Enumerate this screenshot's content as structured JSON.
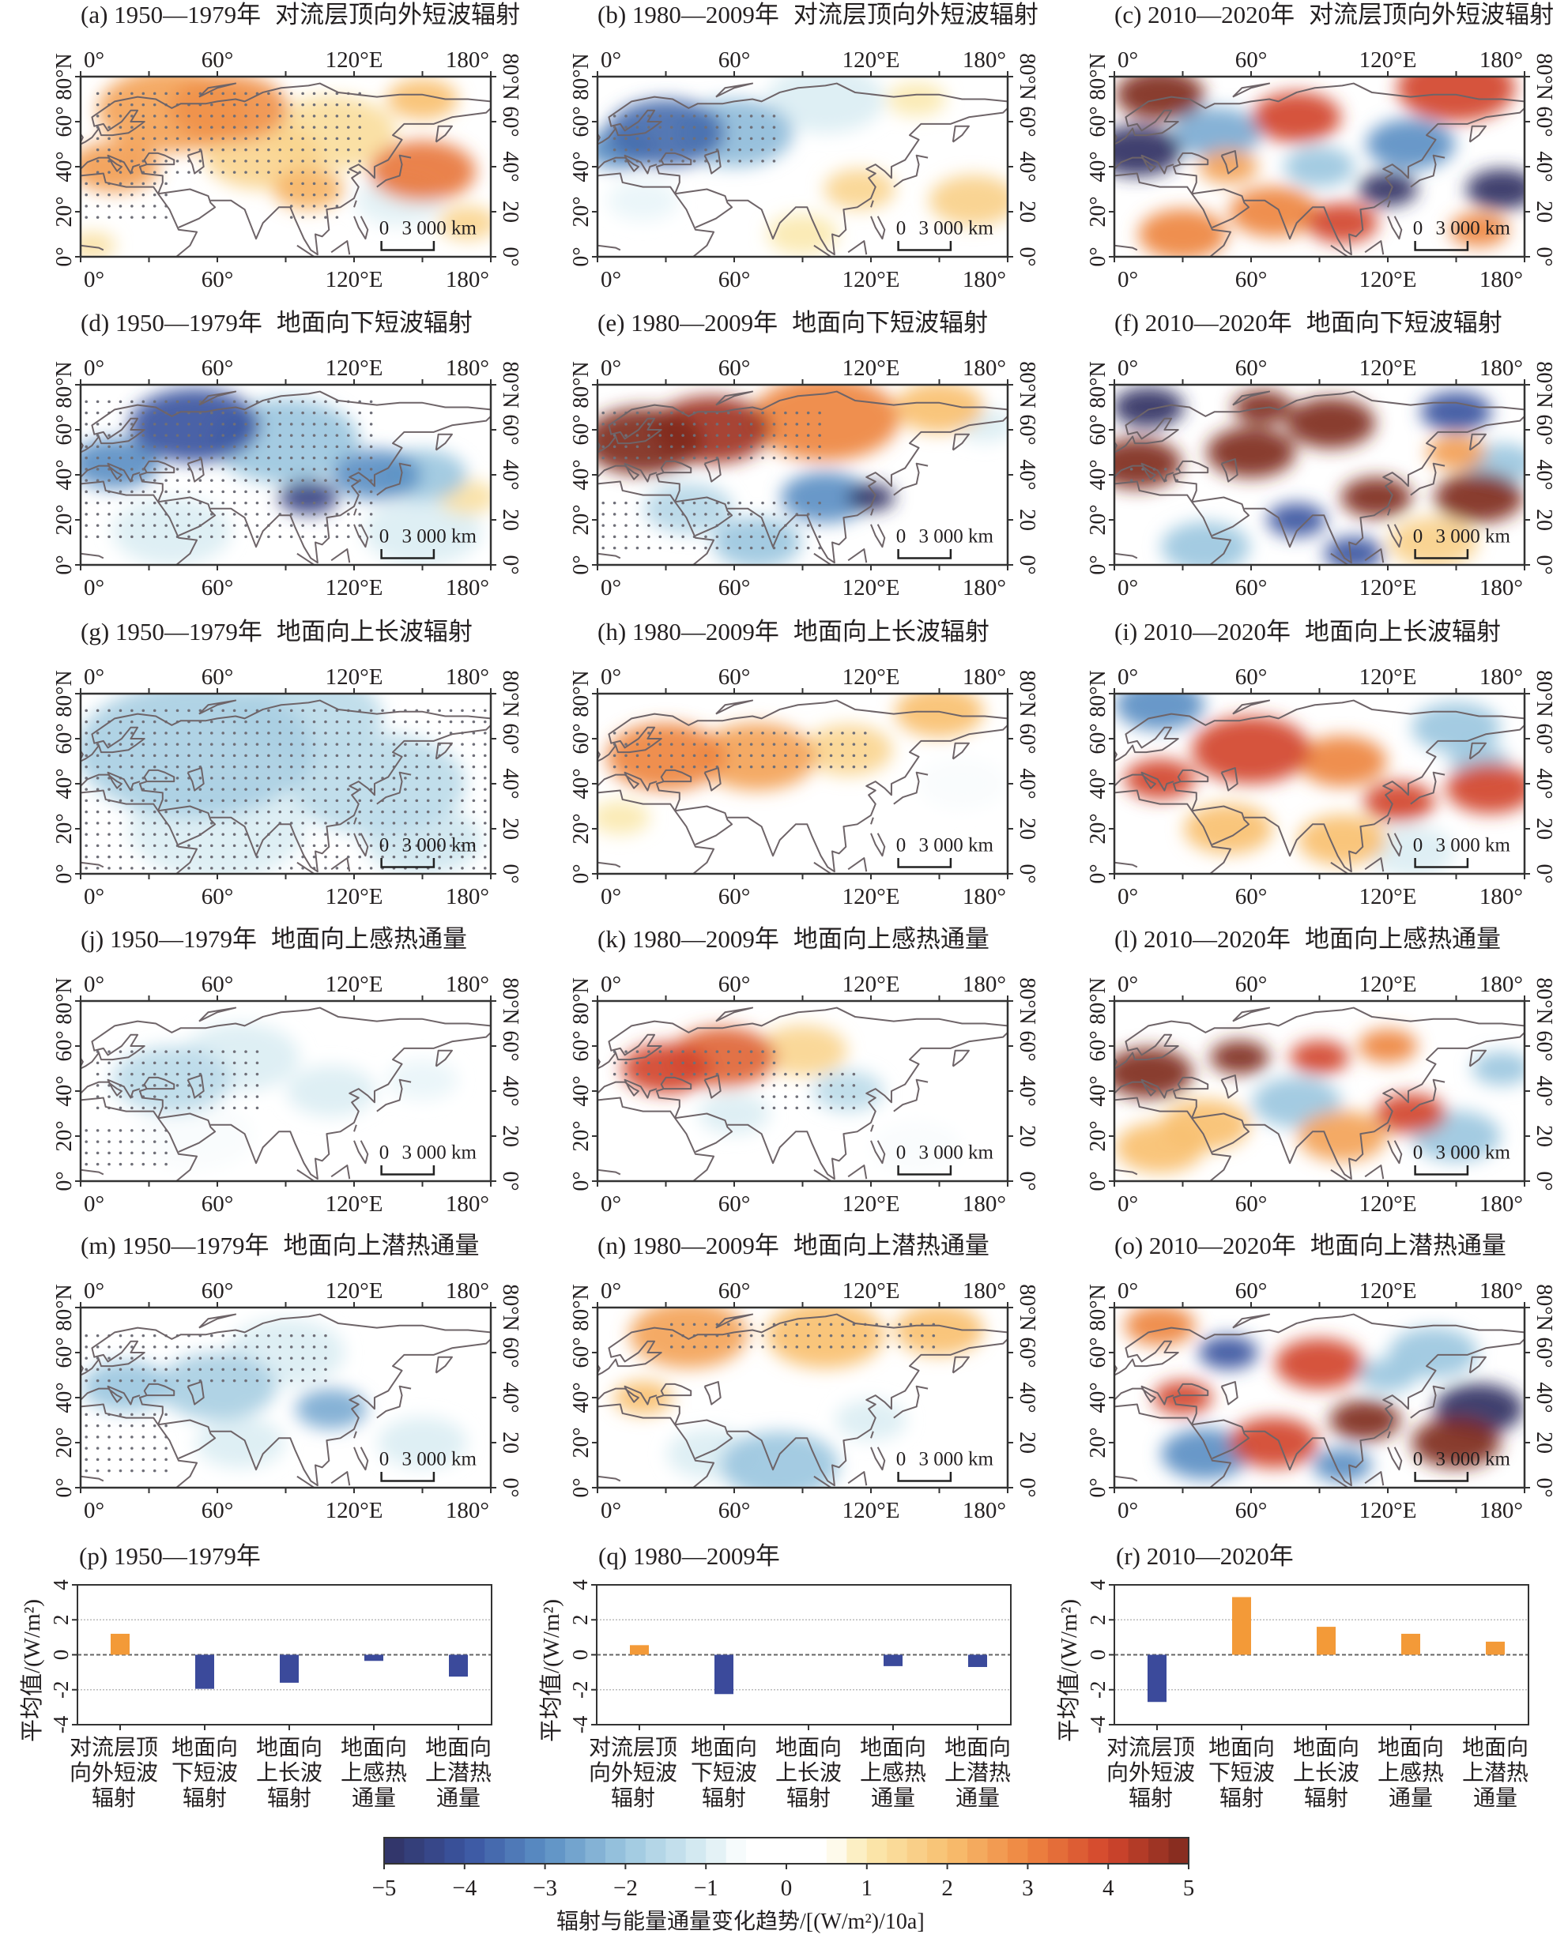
{
  "maps": [
    {
      "title": "(a) 1950—1979年",
      "variable": "对流层顶向外短波辐射",
      "blobs": [
        [
          40,
          65,
          25,
          2.5
        ],
        [
          65,
          66,
          20,
          2.8
        ],
        [
          15,
          40,
          15,
          2.6
        ],
        [
          100,
          30,
          12,
          2.2
        ],
        [
          150,
          38,
          18,
          3.2
        ],
        [
          110,
          55,
          22,
          1.3
        ],
        [
          150,
          70,
          12,
          2
        ],
        [
          140,
          25,
          15,
          -0.9
        ],
        [
          5,
          5,
          8,
          1.2
        ],
        [
          80,
          45,
          20,
          1.5
        ],
        [
          170,
          15,
          10,
          1.5
        ]
      ],
      "stipple": [
        [
          5,
          125,
          35,
          75
        ],
        [
          0,
          40,
          15,
          35
        ],
        [
          90,
          115,
          15,
          35
        ]
      ]
    },
    {
      "title": "(b) 1980—2009年",
      "variable": "对流层顶向外短波辐射",
      "blobs": [
        [
          30,
          55,
          20,
          -3.6
        ],
        [
          10,
          48,
          12,
          -3
        ],
        [
          60,
          55,
          20,
          -2.2
        ],
        [
          100,
          70,
          20,
          -1
        ],
        [
          115,
          30,
          12,
          1.5
        ],
        [
          165,
          25,
          15,
          1.6
        ],
        [
          90,
          10,
          12,
          1
        ],
        [
          140,
          70,
          10,
          1
        ],
        [
          20,
          25,
          12,
          -0.8
        ]
      ],
      "stipple": [
        [
          5,
          80,
          40,
          65
        ]
      ]
    },
    {
      "title": "(c) 2010—2020年",
      "variable": "对流层顶向外短波辐射",
      "blobs": [
        [
          20,
          72,
          15,
          5
        ],
        [
          150,
          75,
          20,
          4
        ],
        [
          10,
          47,
          15,
          -5
        ],
        [
          45,
          55,
          15,
          -2.5
        ],
        [
          80,
          62,
          15,
          4
        ],
        [
          120,
          30,
          10,
          -5
        ],
        [
          170,
          30,
          12,
          -5
        ],
        [
          70,
          20,
          15,
          3
        ],
        [
          100,
          15,
          12,
          4
        ],
        [
          160,
          12,
          10,
          3
        ],
        [
          130,
          50,
          15,
          -3
        ],
        [
          50,
          40,
          10,
          2.5
        ],
        [
          30,
          10,
          15,
          3
        ],
        [
          90,
          40,
          12,
          -2
        ]
      ],
      "stipple": []
    },
    {
      "title": "(d) 1950—1979年",
      "variable": "地面向下短波辐射",
      "blobs": [
        [
          50,
          62,
          22,
          -4
        ],
        [
          15,
          45,
          15,
          -3
        ],
        [
          100,
          30,
          10,
          -4.5
        ],
        [
          130,
          40,
          15,
          -3
        ],
        [
          90,
          55,
          25,
          -2
        ],
        [
          150,
          40,
          15,
          -2
        ],
        [
          170,
          30,
          10,
          1.2
        ],
        [
          40,
          15,
          20,
          -1
        ],
        [
          150,
          15,
          20,
          -1
        ]
      ],
      "stipple": [
        [
          0,
          130,
          10,
          75
        ]
      ]
    },
    {
      "title": "(e) 1980—2009年",
      "variable": "地面向下短波辐射",
      "blobs": [
        [
          20,
          55,
          20,
          5
        ],
        [
          50,
          60,
          20,
          4.6
        ],
        [
          100,
          65,
          25,
          3
        ],
        [
          150,
          70,
          15,
          2
        ],
        [
          100,
          30,
          15,
          -3
        ],
        [
          120,
          30,
          8,
          -5
        ],
        [
          70,
          10,
          15,
          -2
        ],
        [
          40,
          25,
          15,
          -1.6
        ],
        [
          170,
          62,
          10,
          -1
        ]
      ],
      "stipple": [
        [
          0,
          100,
          45,
          72
        ],
        [
          0,
          100,
          5,
          30
        ]
      ]
    },
    {
      "title": "(f) 2010—2020年",
      "variable": "地面向下短波辐射",
      "blobs": [
        [
          15,
          70,
          12,
          -5
        ],
        [
          10,
          45,
          15,
          5
        ],
        [
          60,
          50,
          15,
          5
        ],
        [
          95,
          63,
          15,
          5
        ],
        [
          115,
          30,
          12,
          5
        ],
        [
          160,
          30,
          15,
          5
        ],
        [
          65,
          70,
          10,
          5
        ],
        [
          80,
          20,
          10,
          -4
        ],
        [
          150,
          68,
          12,
          -4
        ],
        [
          170,
          45,
          12,
          -2
        ],
        [
          40,
          8,
          15,
          -2
        ],
        [
          105,
          5,
          10,
          -4
        ],
        [
          140,
          10,
          15,
          1.6
        ],
        [
          150,
          50,
          10,
          2.6
        ]
      ],
      "stipple": [
        [
          5,
          30,
          35,
          45
        ]
      ]
    },
    {
      "title": "(g) 1950—1979年",
      "variable": "地面向上长波辐射",
      "blobs": [
        [
          50,
          55,
          40,
          -1.8
        ],
        [
          130,
          40,
          30,
          -1.5
        ],
        [
          60,
          20,
          30,
          -1
        ],
        [
          150,
          15,
          20,
          -1.2
        ],
        [
          100,
          70,
          25,
          -1.5
        ]
      ],
      "stipple": [
        [
          0,
          180,
          0,
          75
        ]
      ]
    },
    {
      "title": "(h) 1980—2009年",
      "variable": "地面向上长波辐射",
      "blobs": [
        [
          30,
          52,
          20,
          3
        ],
        [
          70,
          52,
          20,
          2.5
        ],
        [
          110,
          55,
          15,
          1.5
        ],
        [
          150,
          72,
          15,
          2
        ],
        [
          10,
          25,
          10,
          1
        ],
        [
          160,
          40,
          15,
          -0.6
        ]
      ],
      "stipple": [
        [
          5,
          120,
          45,
          65
        ]
      ]
    },
    {
      "title": "(i) 2010—2020年",
      "variable": "地面向上长波辐射",
      "blobs": [
        [
          20,
          75,
          15,
          -3
        ],
        [
          60,
          55,
          20,
          4
        ],
        [
          20,
          42,
          12,
          4
        ],
        [
          100,
          50,
          15,
          3
        ],
        [
          125,
          32,
          12,
          4
        ],
        [
          165,
          38,
          15,
          4
        ],
        [
          150,
          65,
          15,
          -2
        ],
        [
          160,
          50,
          10,
          -2
        ],
        [
          50,
          20,
          15,
          2
        ],
        [
          100,
          15,
          15,
          2
        ],
        [
          130,
          10,
          15,
          -1
        ]
      ],
      "stipple": []
    },
    {
      "title": "(j) 1950—1979年",
      "variable": "地面向上感热通量",
      "blobs": [
        [
          40,
          45,
          20,
          -1.5
        ],
        [
          70,
          55,
          20,
          -1
        ],
        [
          110,
          40,
          15,
          -1
        ],
        [
          150,
          45,
          12,
          -0.8
        ],
        [
          50,
          20,
          20,
          -0.6
        ]
      ],
      "stipple": [
        [
          5,
          80,
          30,
          60
        ],
        [
          0,
          40,
          5,
          25
        ]
      ]
    },
    {
      "title": "(k) 1980—2009年",
      "variable": "地面向上感热通量",
      "blobs": [
        [
          30,
          50,
          15,
          4
        ],
        [
          55,
          55,
          18,
          3.5
        ],
        [
          90,
          58,
          15,
          1.5
        ],
        [
          110,
          40,
          12,
          -1.5
        ],
        [
          60,
          30,
          12,
          -1
        ],
        [
          140,
          15,
          15,
          -0.6
        ]
      ],
      "stipple": [
        [
          5,
          80,
          45,
          62
        ],
        [
          70,
          115,
          30,
          50
        ]
      ]
    },
    {
      "title": "(l) 2010—2020年",
      "variable": "地面向上感热通量",
      "blobs": [
        [
          15,
          48,
          15,
          5
        ],
        [
          55,
          55,
          10,
          5
        ],
        [
          90,
          55,
          10,
          4
        ],
        [
          120,
          60,
          10,
          3
        ],
        [
          130,
          30,
          12,
          4
        ],
        [
          80,
          35,
          15,
          -2
        ],
        [
          150,
          20,
          15,
          -2
        ],
        [
          40,
          25,
          15,
          2
        ],
        [
          100,
          20,
          15,
          2.5
        ],
        [
          20,
          15,
          15,
          2
        ],
        [
          170,
          50,
          10,
          -2
        ]
      ],
      "stipple": []
    },
    {
      "title": "(m) 1950—1979年",
      "variable": "地面向上潜热通量",
      "blobs": [
        [
          20,
          45,
          15,
          -2
        ],
        [
          60,
          45,
          20,
          -1.8
        ],
        [
          110,
          35,
          12,
          -2.5
        ],
        [
          90,
          60,
          20,
          -1
        ],
        [
          150,
          20,
          15,
          -1
        ],
        [
          70,
          20,
          15,
          -1
        ]
      ],
      "stipple": [
        [
          0,
          110,
          45,
          70
        ],
        [
          0,
          40,
          5,
          35
        ]
      ]
    },
    {
      "title": "(n) 1980—2009年",
      "variable": "地面向上潜热通量",
      "blobs": [
        [
          40,
          68,
          20,
          2.5
        ],
        [
          100,
          68,
          20,
          2
        ],
        [
          150,
          70,
          15,
          2
        ],
        [
          20,
          40,
          10,
          2
        ],
        [
          80,
          10,
          20,
          -2
        ],
        [
          120,
          30,
          12,
          -1
        ],
        [
          50,
          15,
          15,
          -1
        ]
      ],
      "stipple": [
        [
          30,
          150,
          60,
          75
        ]
      ]
    },
    {
      "title": "(o) 2010—2020年",
      "variable": "地面向上潜热通量",
      "blobs": [
        [
          20,
          72,
          12,
          3
        ],
        [
          50,
          60,
          10,
          -4
        ],
        [
          90,
          55,
          15,
          4
        ],
        [
          30,
          40,
          10,
          4
        ],
        [
          110,
          30,
          12,
          5
        ],
        [
          160,
          35,
          15,
          -5
        ],
        [
          150,
          20,
          15,
          5
        ],
        [
          70,
          20,
          15,
          4
        ],
        [
          100,
          10,
          10,
          -3
        ],
        [
          40,
          15,
          15,
          -3
        ],
        [
          140,
          60,
          15,
          -2
        ],
        [
          120,
          50,
          10,
          -2
        ]
      ],
      "stipple": []
    }
  ],
  "map_axes": {
    "top_labels": [
      "0°",
      "60°",
      "120°E",
      "180°"
    ],
    "bottom_labels": [
      "0°",
      "60°",
      "120°E",
      "180°"
    ],
    "left_labels": [
      "0°",
      "20°",
      "40°",
      "60°",
      "80°N"
    ],
    "right_labels": [
      "0°",
      "20",
      "40°",
      "60°",
      "80°N"
    ],
    "scale_zero": "0",
    "scale_label": "3 000 km"
  },
  "chart_data": {
    "type": "bar",
    "ylabel": "平均值/(W/m²)",
    "ylim": [
      -4,
      4
    ],
    "yticks": [
      "-4",
      "-2",
      "0",
      "2",
      "4"
    ],
    "categories": [
      [
        "对流层顶",
        "向外短波",
        "辐射"
      ],
      [
        "地面向",
        "下短波",
        "辐射"
      ],
      [
        "地面向",
        "上长波",
        "辐射"
      ],
      [
        "地面向",
        "上感热",
        "通量"
      ],
      [
        "地面向",
        "上潜热",
        "通量"
      ]
    ],
    "panels": [
      {
        "title": "(p) 1950—1979年",
        "values": [
          1.2,
          -1.95,
          -1.6,
          -0.35,
          -1.25
        ]
      },
      {
        "title": "(q) 1980—2009年",
        "values": [
          0.55,
          -2.25,
          0,
          -0.65,
          -0.7
        ]
      },
      {
        "title": "(r) 2010—2020年",
        "values": [
          -2.7,
          3.3,
          1.6,
          1.2,
          0.75
        ]
      }
    ],
    "colors": {
      "positive": "#f39a38",
      "negative": "#3b4a9b"
    }
  },
  "colorbar": {
    "ticks": [
      "−5",
      "−4",
      "−3",
      "−2",
      "−1",
      "0",
      "1",
      "2",
      "3",
      "4",
      "5"
    ],
    "range": [
      -5,
      5
    ],
    "label": "辐射与能量通量变化趋势/[(W/m²)/10a]"
  }
}
